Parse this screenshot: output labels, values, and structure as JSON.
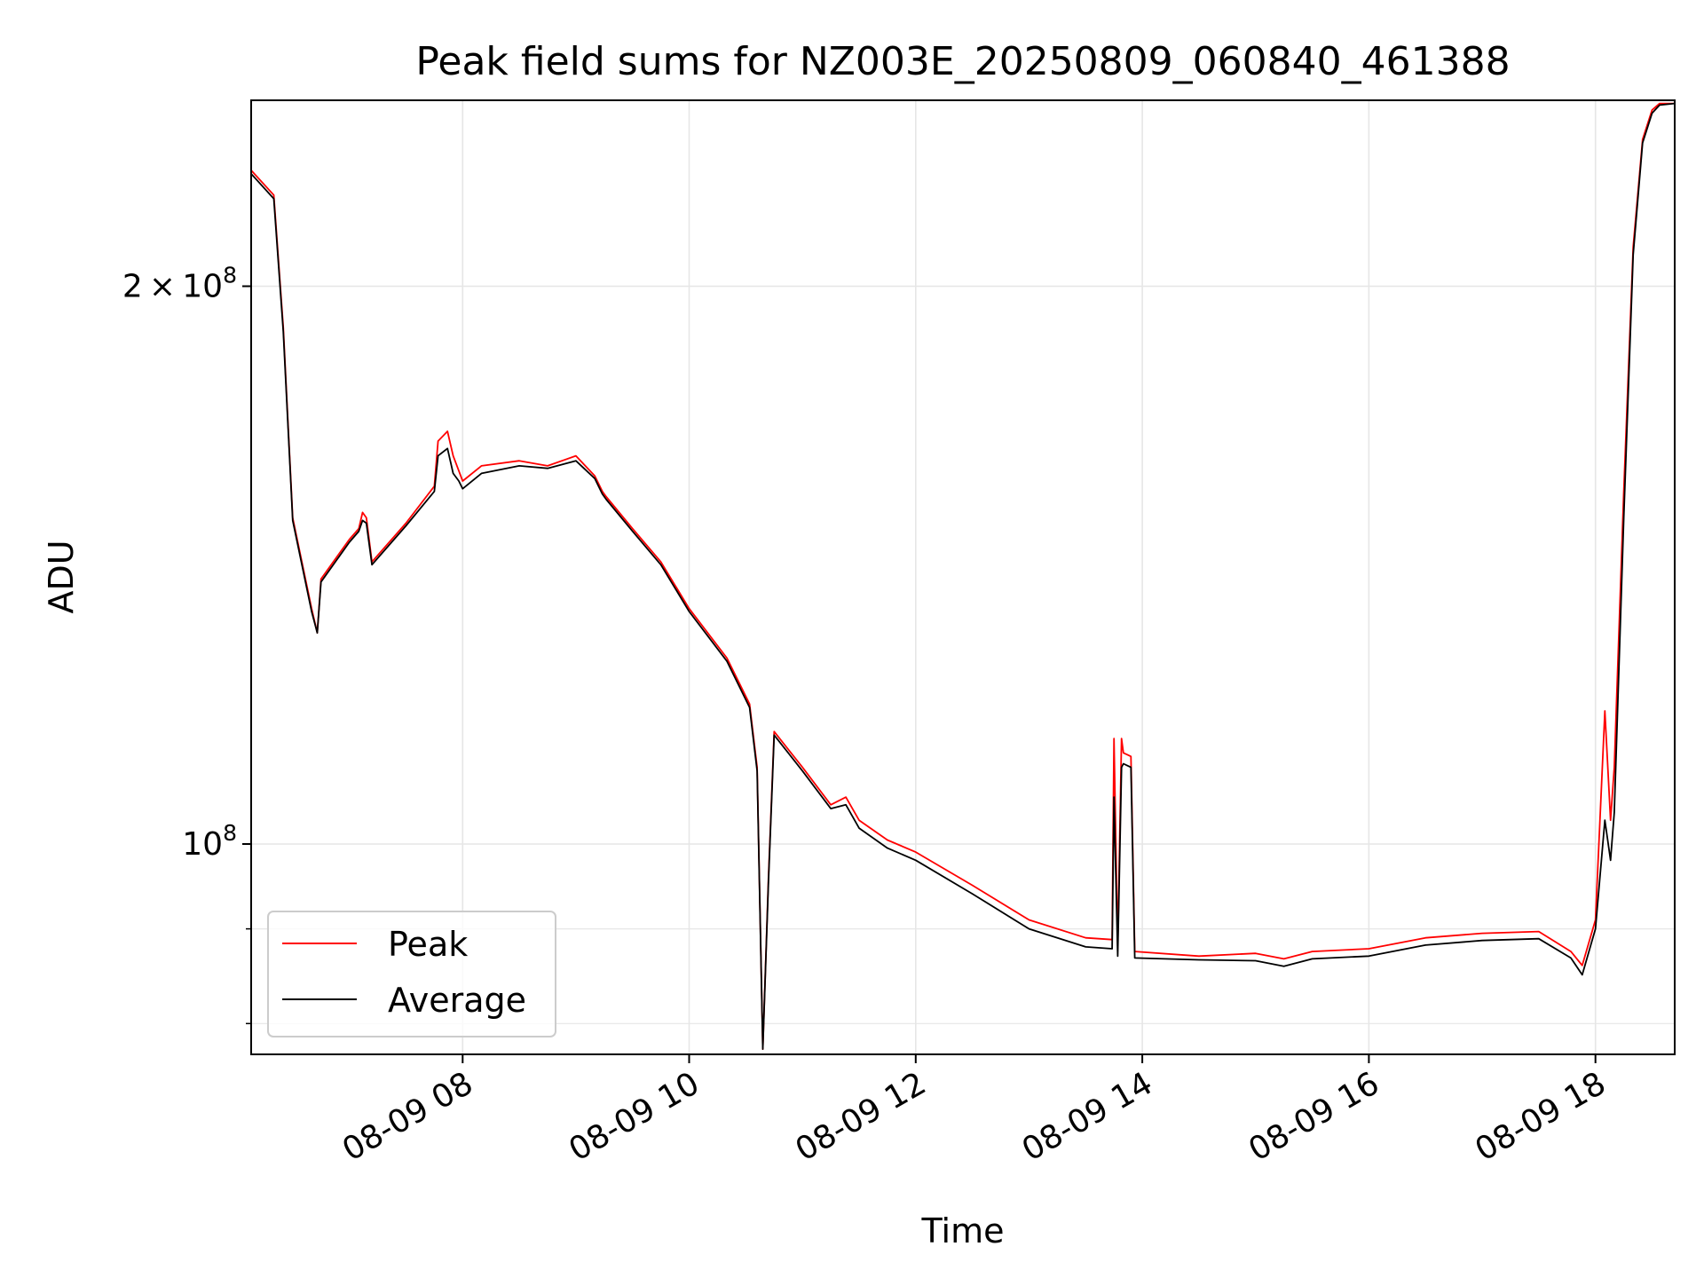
{
  "chart_data": {
    "type": "line",
    "title": "Peak field sums for NZ003E_20250809_060840_461388",
    "xlabel": "Time",
    "ylabel": "ADU",
    "y_scale": "log",
    "ylim": [
      77000000,
      252000000
    ],
    "xlim": [
      "2025-08-09 06:08",
      "2025-08-09 18:42"
    ],
    "x_ticks": [
      {
        "value": "2025-08-09 08:00",
        "label": "08-09 08"
      },
      {
        "value": "2025-08-09 10:00",
        "label": "08-09 10"
      },
      {
        "value": "2025-08-09 12:00",
        "label": "08-09 12"
      },
      {
        "value": "2025-08-09 14:00",
        "label": "08-09 14"
      },
      {
        "value": "2025-08-09 16:00",
        "label": "08-09 16"
      },
      {
        "value": "2025-08-09 18:00",
        "label": "08-09 18"
      }
    ],
    "y_major_ticks": [
      {
        "value": 100000000,
        "base": "10",
        "exp": "8"
      },
      {
        "value": 200000000,
        "coef": "2",
        "base": "10",
        "exp": "8"
      }
    ],
    "y_minor_ticks": [
      80000000,
      90000000
    ],
    "grid": true,
    "legend": {
      "position": "lower-left",
      "entries": [
        "Peak",
        "Average"
      ]
    },
    "colors": {
      "Peak": "#ff0000",
      "Average": "#000000",
      "grid": "#e6e6e6"
    },
    "series": [
      {
        "name": "Peak",
        "x": [
          "2025-08-09 06:08",
          "2025-08-09 06:20",
          "2025-08-09 06:25",
          "2025-08-09 06:30",
          "2025-08-09 06:40",
          "2025-08-09 06:43",
          "2025-08-09 06:45",
          "2025-08-09 07:00",
          "2025-08-09 07:05",
          "2025-08-09 07:07",
          "2025-08-09 07:09",
          "2025-08-09 07:12",
          "2025-08-09 07:30",
          "2025-08-09 07:45",
          "2025-08-09 07:47",
          "2025-08-09 07:52",
          "2025-08-09 07:55",
          "2025-08-09 07:58",
          "2025-08-09 08:00",
          "2025-08-09 08:10",
          "2025-08-09 08:30",
          "2025-08-09 08:45",
          "2025-08-09 09:00",
          "2025-08-09 09:10",
          "2025-08-09 09:14",
          "2025-08-09 09:16",
          "2025-08-09 09:30",
          "2025-08-09 09:45",
          "2025-08-09 10:00",
          "2025-08-09 10:20",
          "2025-08-09 10:32",
          "2025-08-09 10:36",
          "2025-08-09 10:39",
          "2025-08-09 10:42",
          "2025-08-09 10:45",
          "2025-08-09 11:00",
          "2025-08-09 11:15",
          "2025-08-09 11:23",
          "2025-08-09 11:30",
          "2025-08-09 11:45",
          "2025-08-09 12:00",
          "2025-08-09 12:30",
          "2025-08-09 13:00",
          "2025-08-09 13:30",
          "2025-08-09 13:44",
          "2025-08-09 13:45",
          "2025-08-09 13:47",
          "2025-08-09 13:49",
          "2025-08-09 13:50",
          "2025-08-09 13:54",
          "2025-08-09 13:56",
          "2025-08-09 14:30",
          "2025-08-09 15:00",
          "2025-08-09 15:15",
          "2025-08-09 15:30",
          "2025-08-09 16:00",
          "2025-08-09 16:30",
          "2025-08-09 17:00",
          "2025-08-09 17:30",
          "2025-08-09 17:47",
          "2025-08-09 17:53",
          "2025-08-09 18:00",
          "2025-08-09 18:05",
          "2025-08-09 18:08",
          "2025-08-09 18:10",
          "2025-08-09 18:15",
          "2025-08-09 18:20",
          "2025-08-09 18:25",
          "2025-08-09 18:30",
          "2025-08-09 18:34",
          "2025-08-09 18:42"
        ],
        "y": [
          231000000,
          224000000,
          190000000,
          150000000,
          134000000,
          130000000,
          139000000,
          146000000,
          148000000,
          151000000,
          150000000,
          142000000,
          149000000,
          156000000,
          165000000,
          167000000,
          162000000,
          159000000,
          157000000,
          160000000,
          161000000,
          160000000,
          162000000,
          158000000,
          155000000,
          154000000,
          148000000,
          142000000,
          134000000,
          126000000,
          119000000,
          110000000,
          77500000,
          96000000,
          115000000,
          110000000,
          105000000,
          106000000,
          103000000,
          100500000,
          99000000,
          95000000,
          91000000,
          89000000,
          88800000,
          114000000,
          88000000,
          114000000,
          112000000,
          111500000,
          87500000,
          87000000,
          87300000,
          86700000,
          87500000,
          87800000,
          89000000,
          89500000,
          89700000,
          87500000,
          86000000,
          91000000,
          118000000,
          103000000,
          110000000,
          155000000,
          210000000,
          240000000,
          249000000,
          251000000,
          251000000
        ]
      },
      {
        "name": "Average",
        "x": [
          "2025-08-09 06:08",
          "2025-08-09 06:20",
          "2025-08-09 06:25",
          "2025-08-09 06:30",
          "2025-08-09 06:40",
          "2025-08-09 06:43",
          "2025-08-09 06:45",
          "2025-08-09 07:00",
          "2025-08-09 07:05",
          "2025-08-09 07:07",
          "2025-08-09 07:09",
          "2025-08-09 07:12",
          "2025-08-09 07:30",
          "2025-08-09 07:45",
          "2025-08-09 07:47",
          "2025-08-09 07:52",
          "2025-08-09 07:55",
          "2025-08-09 07:58",
          "2025-08-09 08:00",
          "2025-08-09 08:10",
          "2025-08-09 08:30",
          "2025-08-09 08:45",
          "2025-08-09 09:00",
          "2025-08-09 09:10",
          "2025-08-09 09:14",
          "2025-08-09 09:16",
          "2025-08-09 09:30",
          "2025-08-09 09:45",
          "2025-08-09 10:00",
          "2025-08-09 10:20",
          "2025-08-09 10:32",
          "2025-08-09 10:36",
          "2025-08-09 10:39",
          "2025-08-09 10:42",
          "2025-08-09 10:45",
          "2025-08-09 11:00",
          "2025-08-09 11:15",
          "2025-08-09 11:23",
          "2025-08-09 11:30",
          "2025-08-09 11:45",
          "2025-08-09 12:00",
          "2025-08-09 12:30",
          "2025-08-09 13:00",
          "2025-08-09 13:30",
          "2025-08-09 13:44",
          "2025-08-09 13:45",
          "2025-08-09 13:47",
          "2025-08-09 13:49",
          "2025-08-09 13:50",
          "2025-08-09 13:54",
          "2025-08-09 13:56",
          "2025-08-09 14:30",
          "2025-08-09 15:00",
          "2025-08-09 15:15",
          "2025-08-09 15:30",
          "2025-08-09 16:00",
          "2025-08-09 16:30",
          "2025-08-09 17:00",
          "2025-08-09 17:30",
          "2025-08-09 17:47",
          "2025-08-09 17:53",
          "2025-08-09 18:00",
          "2025-08-09 18:05",
          "2025-08-09 18:08",
          "2025-08-09 18:10",
          "2025-08-09 18:15",
          "2025-08-09 18:20",
          "2025-08-09 18:25",
          "2025-08-09 18:30",
          "2025-08-09 18:34",
          "2025-08-09 18:42"
        ],
        "y": [
          230000000,
          223000000,
          189000000,
          149500000,
          133500000,
          130000000,
          138500000,
          145500000,
          147500000,
          149500000,
          149000000,
          141500000,
          148500000,
          155000000,
          162000000,
          163500000,
          158500000,
          157000000,
          155500000,
          158500000,
          160000000,
          159500000,
          161000000,
          157500000,
          154500000,
          153500000,
          147500000,
          141500000,
          133500000,
          125500000,
          118500000,
          109500000,
          77500000,
          95500000,
          114500000,
          109500000,
          104500000,
          105000000,
          102000000,
          99500000,
          98000000,
          94000000,
          90000000,
          88000000,
          87800000,
          106000000,
          87000000,
          110000000,
          110500000,
          110000000,
          86800000,
          86600000,
          86500000,
          85900000,
          86700000,
          87000000,
          88200000,
          88700000,
          88900000,
          86800000,
          85000000,
          90000000,
          103000000,
          98000000,
          104000000,
          150000000,
          208000000,
          239000000,
          248000000,
          250500000,
          251000000
        ]
      }
    ]
  }
}
